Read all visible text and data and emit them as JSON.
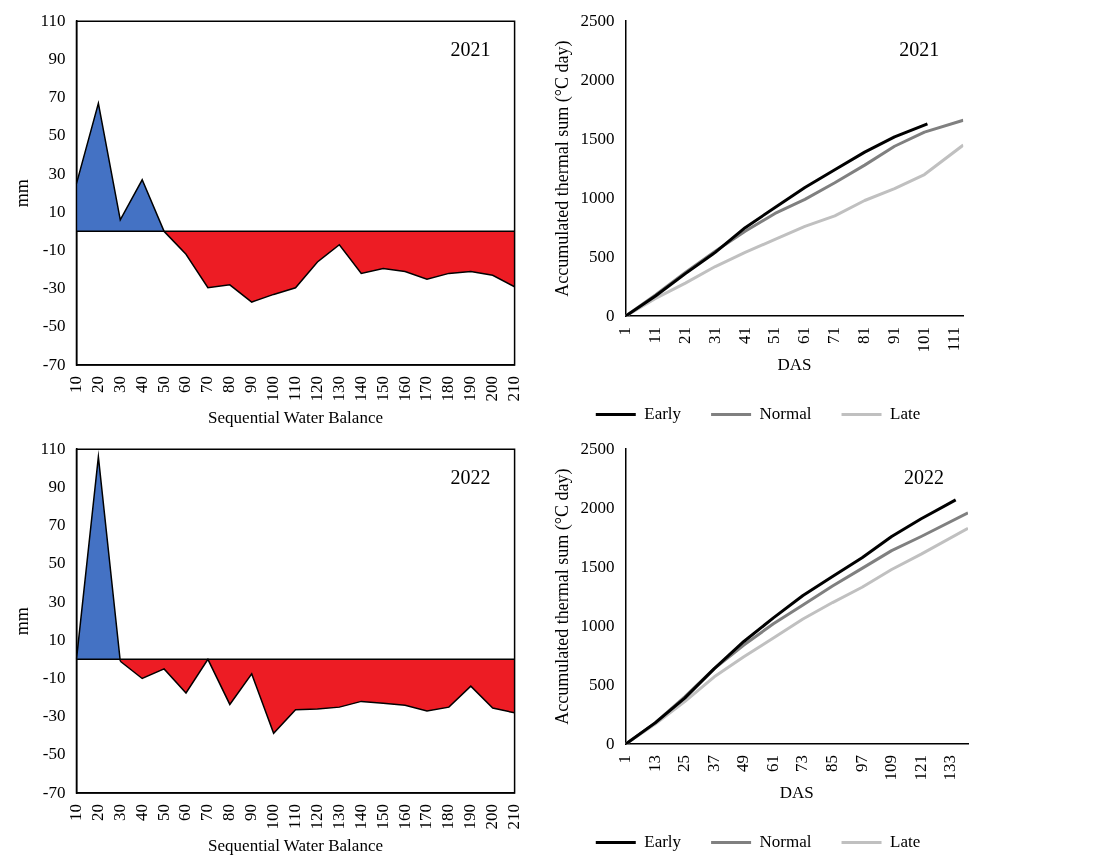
{
  "chart_data": [
    {
      "type": "area",
      "xlabel": "Sequential Water Balance",
      "ylabel": "mm",
      "annotations": [
        "2021"
      ],
      "categories": [
        "10",
        "20",
        "30",
        "40",
        "50",
        "60",
        "70",
        "80",
        "90",
        "100",
        "110",
        "120",
        "130",
        "140",
        "150",
        "160",
        "170",
        "180",
        "190",
        "200",
        "210"
      ],
      "series": [
        {
          "color": "#4472c4",
          "values": [
            25,
            67,
            6,
            27,
            0,
            null,
            null,
            null,
            null,
            null,
            null,
            null,
            null,
            null,
            null,
            null,
            null,
            null,
            null,
            null,
            null
          ]
        },
        {
          "color": "#ed1c24",
          "values": [
            null,
            null,
            null,
            null,
            0,
            -12,
            -29.5,
            -28,
            -37,
            -33,
            -29.5,
            -16,
            -7,
            -22,
            -19.5,
            -21,
            -25,
            -22,
            -21,
            -23,
            -29
          ]
        }
      ],
      "ylim": [
        -70,
        110
      ],
      "yticks": [
        -70,
        -50,
        -30,
        -10,
        10,
        30,
        50,
        70,
        90,
        110
      ],
      "ref_lines": [
        {
          "axis": "y",
          "value": 0
        }
      ]
    },
    {
      "type": "line",
      "xlabel": "DAS",
      "ylabel": "Accumulated thermal sum (°C day)",
      "annotations": [
        "2021"
      ],
      "legend": "bottom",
      "xlim": [
        1,
        114
      ],
      "xticks": [
        1,
        11,
        21,
        31,
        41,
        51,
        61,
        71,
        81,
        91,
        101,
        111
      ],
      "ylim": [
        0,
        2500
      ],
      "yticks": [
        0,
        500,
        1000,
        1500,
        2000,
        2500
      ],
      "series": [
        {
          "name": "Early",
          "color": "#000000",
          "x": [
            1,
            11,
            21,
            31,
            41,
            51,
            61,
            71,
            81,
            91,
            102
          ],
          "values": [
            0,
            170,
            360,
            540,
            750,
            920,
            1090,
            1240,
            1390,
            1520,
            1630
          ]
        },
        {
          "name": "Normal",
          "color": "#808080",
          "x": [
            1,
            11,
            21,
            31,
            41,
            51,
            61,
            71,
            81,
            91,
            101,
            114
          ],
          "values": [
            0,
            180,
            370,
            550,
            720,
            870,
            990,
            1130,
            1280,
            1440,
            1560,
            1660
          ]
        },
        {
          "name": "Late",
          "color": "#c0c0c0",
          "x": [
            1,
            11,
            21,
            31,
            41,
            51,
            61,
            71,
            81,
            91,
            101,
            114
          ],
          "values": [
            0,
            150,
            280,
            420,
            540,
            650,
            760,
            850,
            980,
            1080,
            1200,
            1450
          ]
        }
      ]
    },
    {
      "type": "area",
      "xlabel": "Sequential Water Balance",
      "ylabel": "mm",
      "annotations": [
        "2022"
      ],
      "categories": [
        "10",
        "20",
        "30",
        "40",
        "50",
        "60",
        "70",
        "80",
        "90",
        "100",
        "110",
        "120",
        "130",
        "140",
        "150",
        "160",
        "170",
        "180",
        "190",
        "200",
        "210"
      ],
      "series": [
        {
          "color": "#4472c4",
          "values": [
            0,
            106,
            -1,
            null,
            null,
            null,
            null,
            null,
            null,
            null,
            null,
            null,
            null,
            null,
            null,
            null,
            null,
            null,
            null,
            null,
            null
          ]
        },
        {
          "color": "#ed1c24",
          "values": [
            null,
            null,
            -1,
            -10,
            -5,
            -17.6,
            0,
            -23.6,
            -7.6,
            -38.7,
            -26.4,
            -26,
            -25,
            -22,
            -23,
            -24,
            -27,
            -25,
            -14,
            -25.5,
            -28
          ]
        }
      ],
      "ylim": [
        -70,
        110
      ],
      "yticks": [
        -70,
        -50,
        -30,
        -10,
        10,
        30,
        50,
        70,
        90,
        110
      ],
      "ref_lines": [
        {
          "axis": "y",
          "value": 0
        }
      ]
    },
    {
      "type": "line",
      "xlabel": "DAS",
      "ylabel": "Accumulated thermal sum (°C day)",
      "annotations": [
        "2022"
      ],
      "legend": "bottom",
      "xlim": [
        1,
        140
      ],
      "xticks": [
        1,
        13,
        25,
        37,
        49,
        61,
        73,
        85,
        97,
        109,
        121,
        133
      ],
      "ylim": [
        0,
        2500
      ],
      "yticks": [
        0,
        500,
        1000,
        1500,
        2000,
        2500
      ],
      "series": [
        {
          "name": "Early",
          "color": "#000000",
          "x": [
            1,
            13,
            25,
            37,
            49,
            61,
            73,
            85,
            97,
            109,
            121,
            135
          ],
          "values": [
            0,
            180,
            390,
            640,
            870,
            1070,
            1260,
            1420,
            1580,
            1760,
            1910,
            2070
          ]
        },
        {
          "name": "Normal",
          "color": "#808080",
          "x": [
            1,
            13,
            25,
            37,
            49,
            61,
            73,
            85,
            97,
            109,
            121,
            140
          ],
          "values": [
            0,
            180,
            400,
            640,
            840,
            1020,
            1180,
            1340,
            1490,
            1640,
            1760,
            1960
          ]
        },
        {
          "name": "Late",
          "color": "#c0c0c0",
          "x": [
            1,
            13,
            25,
            37,
            49,
            61,
            73,
            85,
            97,
            109,
            121,
            140
          ],
          "values": [
            0,
            170,
            360,
            570,
            740,
            900,
            1060,
            1200,
            1330,
            1480,
            1610,
            1830
          ]
        }
      ]
    }
  ]
}
